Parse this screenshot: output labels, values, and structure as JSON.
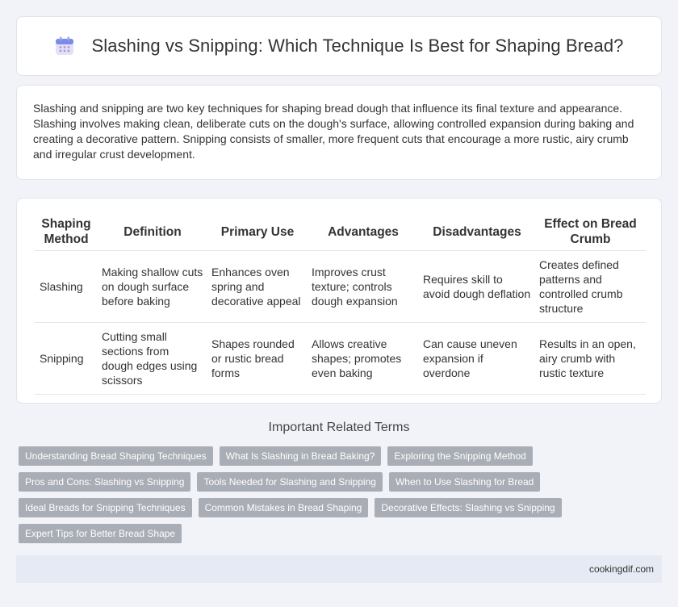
{
  "header": {
    "title": "Slashing vs Snipping: Which Technique Is Best for Shaping Bread?",
    "icon": "calendar-icon"
  },
  "intro": {
    "text": "Slashing and snipping are two key techniques for shaping bread dough that influence its final texture and appearance. Slashing involves making clean, deliberate cuts on the dough's surface, allowing controlled expansion during baking and creating a decorative pattern. Snipping consists of smaller, more frequent cuts that encourage a more rustic, airy crumb and irregular crust development."
  },
  "table": {
    "headers": [
      "Shaping Method",
      "Definition",
      "Primary Use",
      "Advantages",
      "Disadvantages",
      "Effect on Bread Crumb"
    ],
    "rows": [
      [
        "Slashing",
        "Making shallow cuts on dough surface before baking",
        "Enhances oven spring and decorative appeal",
        "Improves crust texture; controls dough expansion",
        "Requires skill to avoid dough deflation",
        "Creates defined patterns and controlled crumb structure"
      ],
      [
        "Snipping",
        "Cutting small sections from dough edges using scissors",
        "Shapes rounded or rustic bread forms",
        "Allows creative shapes; promotes even baking",
        "Can cause uneven expansion if overdone",
        "Results in an open, airy crumb with rustic texture"
      ]
    ]
  },
  "related": {
    "title": "Important Related Terms",
    "rows": [
      [
        "Understanding Bread Shaping Techniques",
        "What Is Slashing in Bread Baking?",
        "Exploring the Snipping Method"
      ],
      [
        "Pros and Cons: Slashing vs Snipping",
        "Tools Needed for Slashing and Snipping",
        "When to Use Slashing for Bread"
      ],
      [
        "Ideal Breads for Snipping Techniques",
        "Common Mistakes in Bread Shaping",
        "Decorative Effects: Slashing vs Snipping"
      ],
      [
        "Expert Tips for Better Bread Shape"
      ]
    ]
  },
  "footer": {
    "site": "cookingdif.com"
  }
}
